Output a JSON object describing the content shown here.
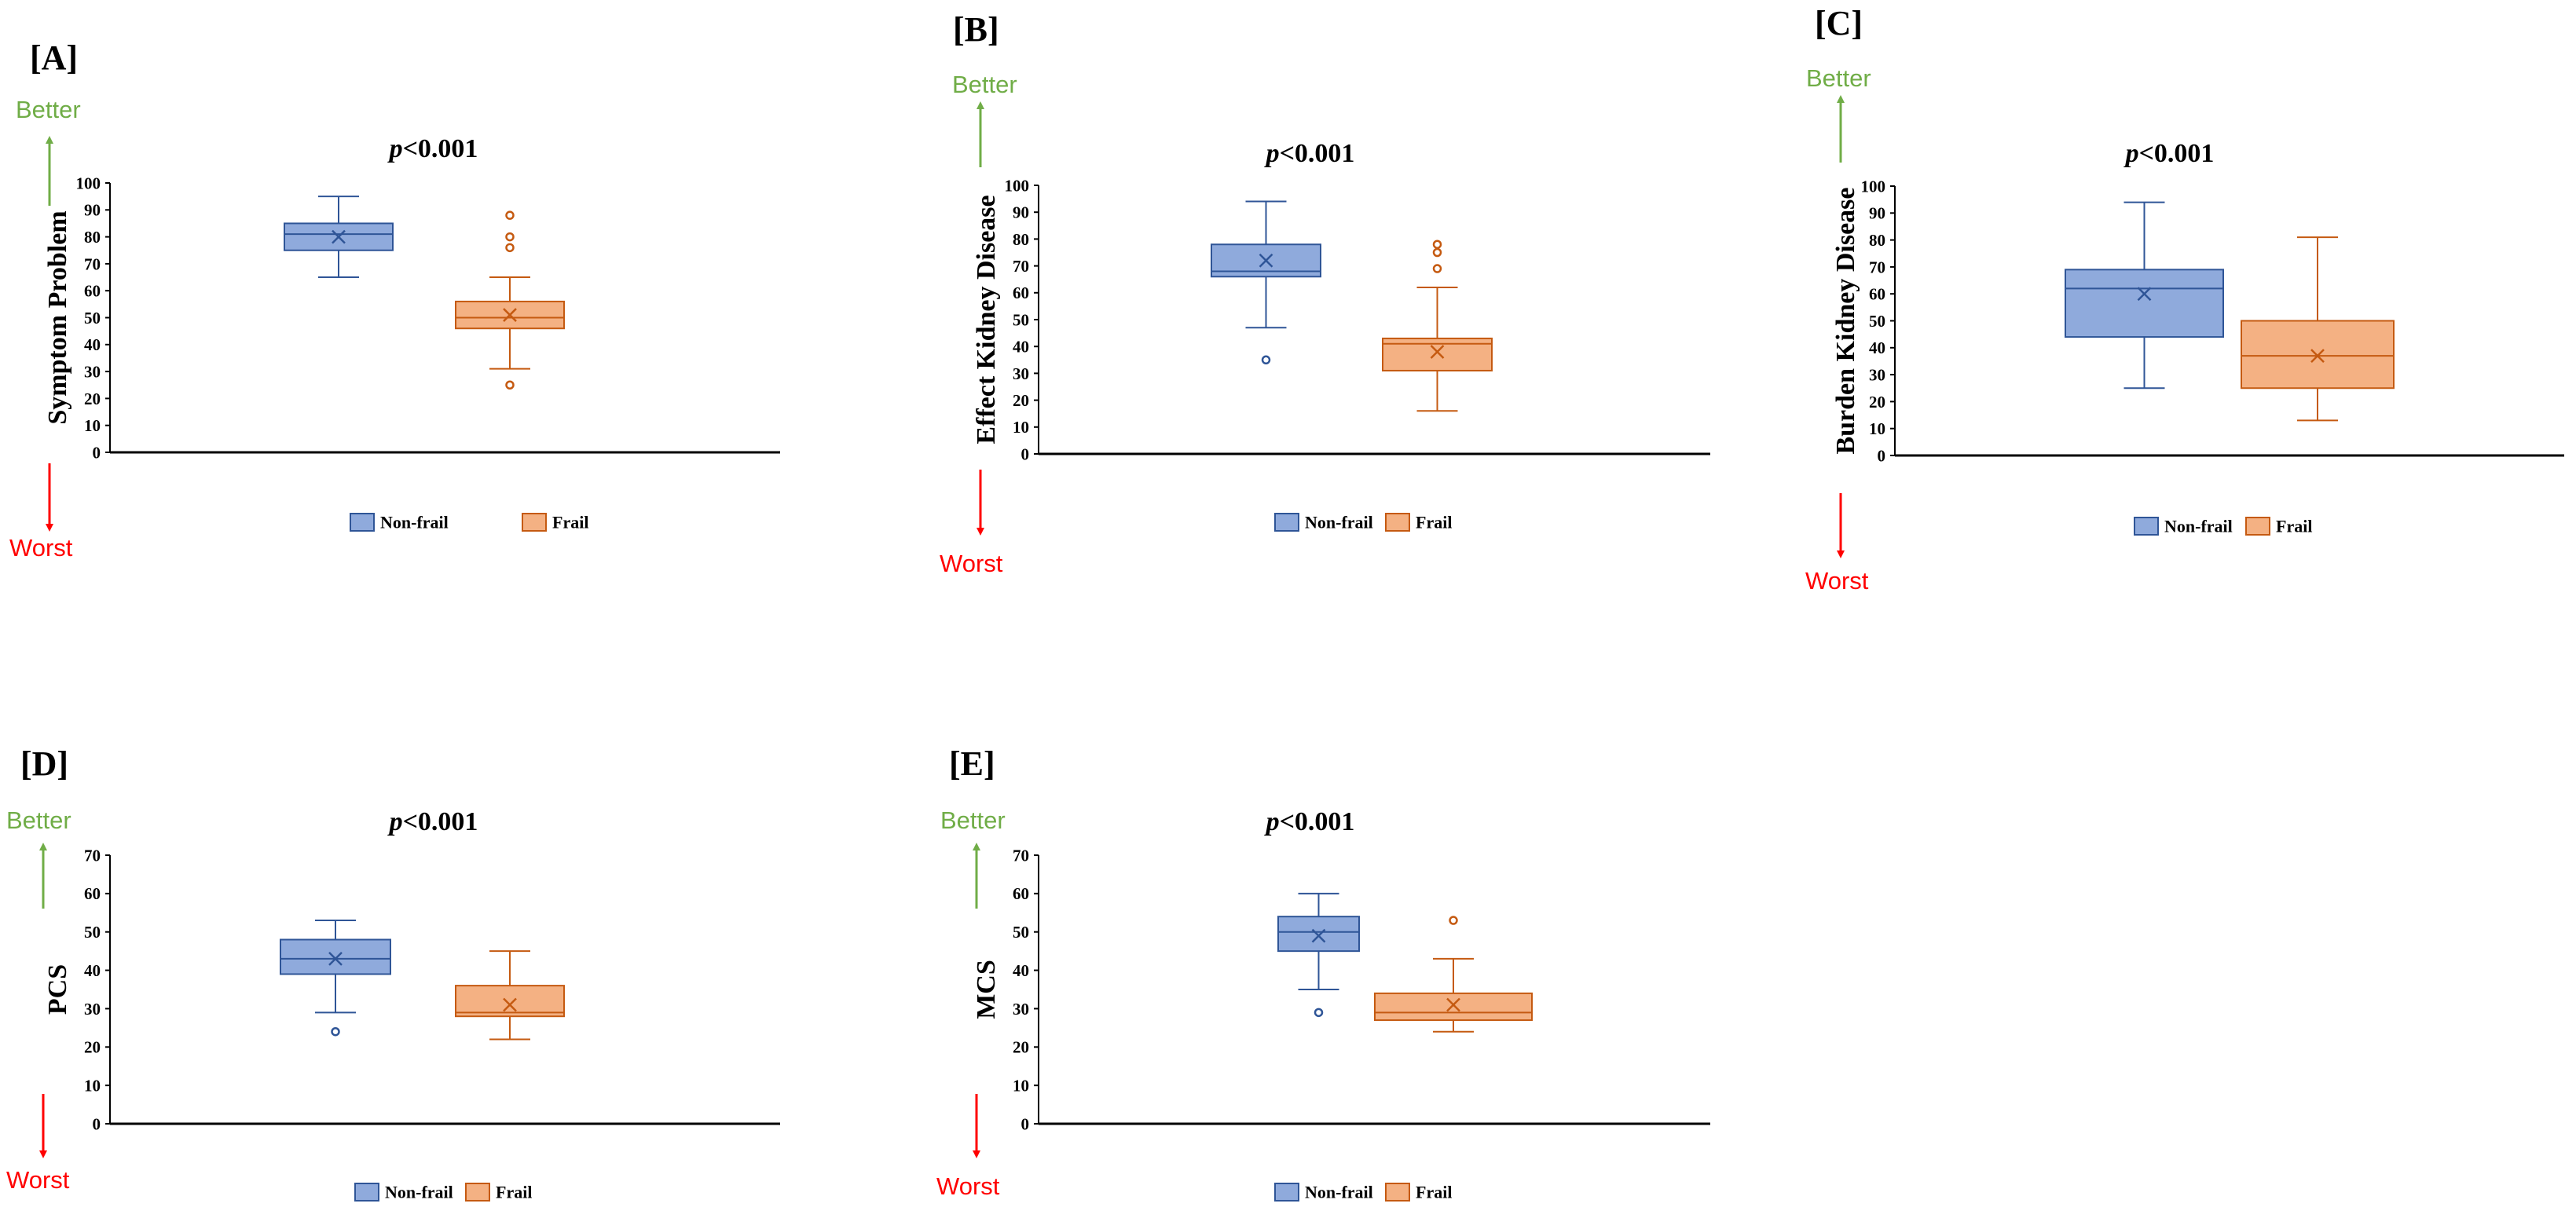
{
  "colors": {
    "nonfrail_fill": "#8faadc",
    "nonfrail_stroke": "#2f5597",
    "frail_fill": "#f4b183",
    "frail_stroke": "#c55a11",
    "better": "#70ad47",
    "worst": "#ff0000"
  },
  "direction": {
    "better": "Better",
    "worst": "Worst"
  },
  "legend": {
    "nonfrail": "Non-frail",
    "frail": "Frail"
  },
  "chart_data": [
    {
      "type": "box",
      "panel": "[A]",
      "p_prefix": "p",
      "p_value": "<0.001",
      "ylabel": "Symptom Problem",
      "ylim": [
        0,
        100
      ],
      "yticks": [
        0,
        10,
        20,
        30,
        40,
        50,
        60,
        70,
        80,
        90,
        100
      ],
      "categories": [
        "Non-frail",
        "Frail"
      ],
      "series": [
        {
          "name": "Non-frail",
          "min": 65,
          "q1": 75,
          "median": 81,
          "q3": 85,
          "max": 95,
          "mean": 80,
          "outliers": []
        },
        {
          "name": "Frail",
          "min": 31,
          "q1": 46,
          "median": 50,
          "q3": 56,
          "max": 65,
          "mean": 51,
          "outliers": [
            88,
            80,
            76,
            25
          ]
        }
      ]
    },
    {
      "type": "box",
      "panel": "[B]",
      "p_prefix": "p",
      "p_value": "<0.001",
      "ylabel": "Effect Kidney Disease",
      "ylim": [
        0,
        100
      ],
      "yticks": [
        0,
        10,
        20,
        30,
        40,
        50,
        60,
        70,
        80,
        90,
        100
      ],
      "categories": [
        "Non-frail",
        "Frail"
      ],
      "series": [
        {
          "name": "Non-frail",
          "min": 47,
          "q1": 66,
          "median": 68,
          "q3": 78,
          "max": 94,
          "mean": 72,
          "outliers": [
            35
          ]
        },
        {
          "name": "Frail",
          "min": 16,
          "q1": 31,
          "median": 41,
          "q3": 43,
          "max": 62,
          "mean": 38,
          "outliers": [
            78,
            75,
            69
          ]
        }
      ]
    },
    {
      "type": "box",
      "panel": "[C]",
      "p_prefix": "p",
      "p_value": "<0.001",
      "ylabel": "Burden Kidney Disease",
      "ylim": [
        0,
        100
      ],
      "yticks": [
        0,
        10,
        20,
        30,
        40,
        50,
        60,
        70,
        80,
        90,
        100
      ],
      "categories": [
        "Non-frail",
        "Frail"
      ],
      "series": [
        {
          "name": "Non-frail",
          "min": 25,
          "q1": 44,
          "median": 62,
          "q3": 69,
          "max": 94,
          "mean": 60,
          "outliers": []
        },
        {
          "name": "Frail",
          "min": 13,
          "q1": 25,
          "median": 37,
          "q3": 50,
          "max": 81,
          "mean": 37,
          "outliers": []
        }
      ]
    },
    {
      "type": "box",
      "panel": "[D]",
      "p_prefix": "p",
      "p_value": "<0.001",
      "ylabel": "PCS",
      "ylim": [
        0,
        70
      ],
      "yticks": [
        0,
        10,
        20,
        30,
        40,
        50,
        60,
        70
      ],
      "categories": [
        "Non-frail",
        "Frail"
      ],
      "series": [
        {
          "name": "Non-frail",
          "min": 29,
          "q1": 39,
          "median": 43,
          "q3": 48,
          "max": 53,
          "mean": 43,
          "outliers": [
            24
          ]
        },
        {
          "name": "Frail",
          "min": 22,
          "q1": 28,
          "median": 29,
          "q3": 36,
          "max": 45,
          "mean": 31,
          "outliers": []
        }
      ]
    },
    {
      "type": "box",
      "panel": "[E]",
      "p_prefix": "p",
      "p_value": "<0.001",
      "ylabel": "MCS",
      "ylim": [
        0,
        70
      ],
      "yticks": [
        0,
        10,
        20,
        30,
        40,
        50,
        60,
        70
      ],
      "categories": [
        "Non-frail",
        "Frail"
      ],
      "series": [
        {
          "name": "Non-frail",
          "min": 35,
          "q1": 45,
          "median": 50,
          "q3": 54,
          "max": 60,
          "mean": 49,
          "outliers": [
            29
          ]
        },
        {
          "name": "Frail",
          "min": 24,
          "q1": 27,
          "median": 29,
          "q3": 34,
          "max": 43,
          "mean": 31,
          "outliers": [
            53
          ]
        }
      ]
    }
  ]
}
